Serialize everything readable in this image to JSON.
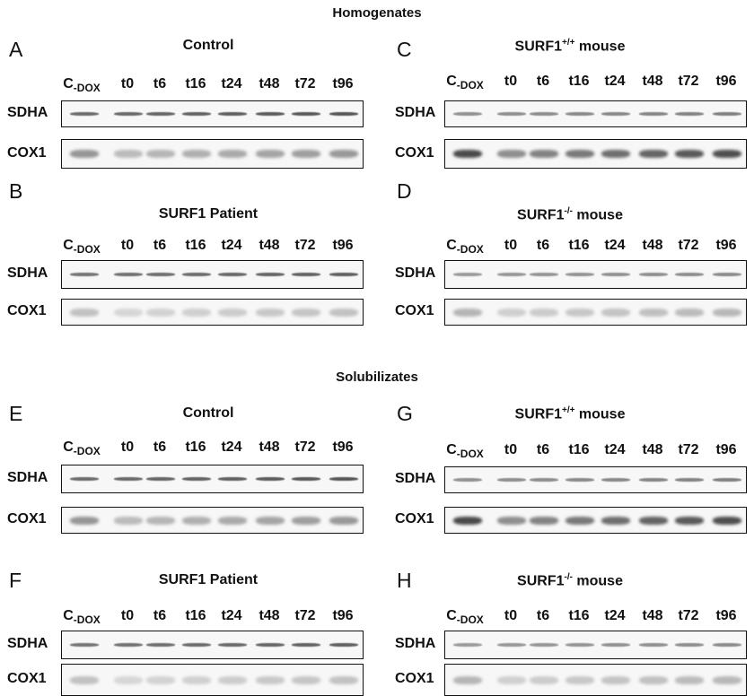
{
  "sections": [
    {
      "title": "Homogenates",
      "panels": [
        {
          "letter": "A",
          "title": {
            "text": "Control"
          },
          "lanes": [
            {
              "main": "C",
              "sub": "-DOX"
            },
            "t0",
            "t6",
            "t16",
            "t24",
            "t48",
            "t72",
            "t96"
          ],
          "rows": [
            "SDHA",
            "COX1"
          ]
        },
        {
          "letter": "B",
          "title": {
            "text": "SURF1 Patient"
          },
          "lanes": [
            {
              "main": "C",
              "sub": "-DOX"
            },
            "t0",
            "t6",
            "t16",
            "t24",
            "t48",
            "t72",
            "t96"
          ],
          "rows": [
            "SDHA",
            "COX1"
          ]
        },
        {
          "letter": "C",
          "title": {
            "text": "SURF1",
            "sup": "+/+",
            "rest": " mouse"
          },
          "lanes": [
            {
              "main": "C",
              "sub": "-DOX"
            },
            "t0",
            "t6",
            "t16",
            "t24",
            "t48",
            "t72",
            "t96"
          ],
          "rows": [
            "SDHA",
            "COX1"
          ]
        },
        {
          "letter": "D",
          "title": {
            "text": "SURF1",
            "sup": "-/-",
            "rest": " mouse"
          },
          "lanes": [
            {
              "main": "C",
              "sub": "-DOX"
            },
            "t0",
            "t6",
            "t16",
            "t24",
            "t48",
            "t72",
            "t96"
          ],
          "rows": [
            "SDHA",
            "COX1"
          ]
        }
      ]
    },
    {
      "title": "Solubilizates",
      "panels": [
        {
          "letter": "E",
          "title": {
            "text": "Control"
          },
          "lanes": [
            {
              "main": "C",
              "sub": "-DOX"
            },
            "t0",
            "t6",
            "t16",
            "t24",
            "t48",
            "t72",
            "t96"
          ],
          "rows": [
            "SDHA",
            "COX1"
          ]
        },
        {
          "letter": "F",
          "title": {
            "text": "SURF1 Patient"
          },
          "lanes": [
            {
              "main": "C",
              "sub": "-DOX"
            },
            "t0",
            "t6",
            "t16",
            "t24",
            "t48",
            "t72",
            "t96"
          ],
          "rows": [
            "SDHA",
            "COX1"
          ]
        },
        {
          "letter": "G",
          "title": {
            "text": "SURF1",
            "sup": "+/+",
            "rest": " mouse"
          },
          "lanes": [
            {
              "main": "C",
              "sub": "-DOX"
            },
            "t0",
            "t6",
            "t16",
            "t24",
            "t48",
            "t72",
            "t96"
          ],
          "rows": [
            "SDHA",
            "COX1"
          ]
        },
        {
          "letter": "H",
          "title": {
            "text": "SURF1",
            "sup": "-/-",
            "rest": " mouse"
          },
          "lanes": [
            {
              "main": "C",
              "sub": "-DOX"
            },
            "t0",
            "t6",
            "t16",
            "t24",
            "t48",
            "t72",
            "t96"
          ],
          "rows": [
            "SDHA",
            "COX1"
          ]
        }
      ]
    }
  ]
}
